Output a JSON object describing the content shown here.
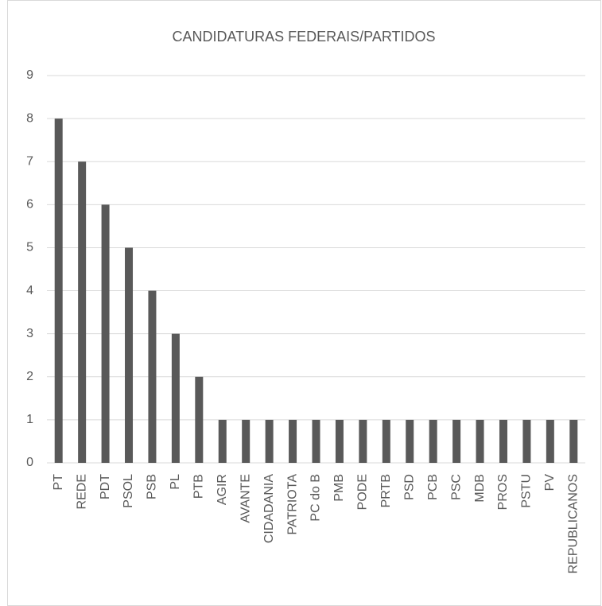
{
  "chart_data": {
    "type": "bar",
    "title": "CANDIDATURAS FEDERAIS/PARTIDOS",
    "categories": [
      "PT",
      "REDE",
      "PDT",
      "PSOL",
      "PSB",
      "PL",
      "PTB",
      "AGIR",
      "AVANTE",
      "CIDADANIA",
      "PATRIOTA",
      "PC do B",
      "PMB",
      "PODE",
      "PRTB",
      "PSD",
      "PCB",
      "PSC",
      "MDB",
      "PROS",
      "PSTU",
      "PV",
      "REPUBLICANOS"
    ],
    "values": [
      8,
      7,
      6,
      5,
      4,
      3,
      2,
      1,
      1,
      1,
      1,
      1,
      1,
      1,
      1,
      1,
      1,
      1,
      1,
      1,
      1,
      1,
      1
    ],
    "color": "#595959",
    "ylim": [
      0,
      9
    ],
    "yticks": [
      0,
      1,
      2,
      3,
      4,
      5,
      6,
      7,
      8,
      9
    ],
    "grid": true
  }
}
